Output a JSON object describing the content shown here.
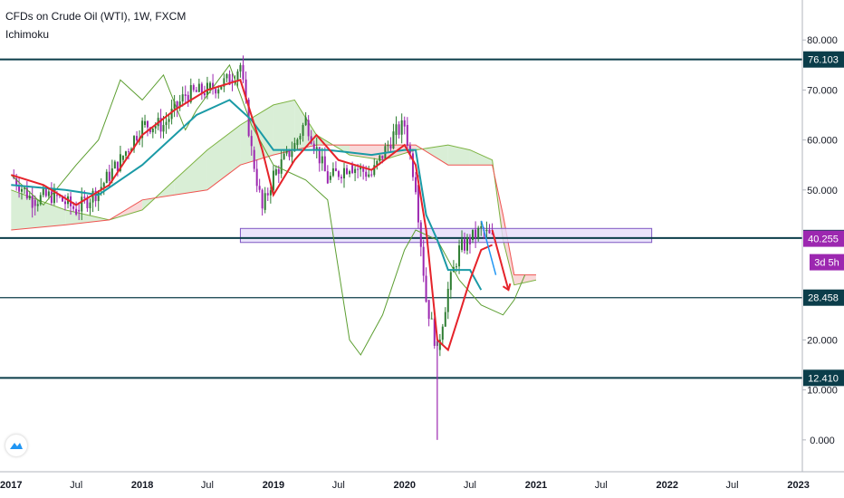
{
  "header": {
    "title": "CFDs on Crude Oil (WTI), 1W, FXCM",
    "indicator": "Ichimoku"
  },
  "colors": {
    "conversion_line": "#e5232a",
    "base_line": "#1a9aa6",
    "lagging_span": "#5c9e31",
    "cloud_bull": "#c9e7c4",
    "cloud_bear": "#f7c8c8",
    "candle_up": "#2e7d32",
    "candle_down": "#9c27b0",
    "horizontal_line": "#0b3d4a",
    "rectangle_fill": "#e5dcfa",
    "rectangle_border": "#7e57c2",
    "last_price_badge": "#9c27b0",
    "countdown_badge": "#9c27b0",
    "arrow": "#e5232a",
    "projection_arrow": "#2196f3"
  },
  "price_scale": {
    "ticks": [
      "80.000",
      "70.000",
      "60.000",
      "50.000",
      "20.000",
      "10.000",
      "0.000"
    ],
    "labels": [
      {
        "value": 76.103,
        "text": "76.103",
        "style": "line"
      },
      {
        "value": 40.389,
        "text": "40.389",
        "style": "line"
      },
      {
        "value": 40.255,
        "text": "40.255",
        "style": "price"
      },
      {
        "value": 28.458,
        "text": "28.458",
        "style": "line"
      },
      {
        "value": 12.41,
        "text": "12.410",
        "style": "line"
      }
    ],
    "countdown": "3d 5h"
  },
  "time_axis": {
    "labels": [
      "2017",
      "Jul",
      "2018",
      "Jul",
      "2019",
      "Jul",
      "2020",
      "Jul",
      "2021",
      "Jul",
      "2022",
      "Jul",
      "2023"
    ],
    "bold": [
      "2017",
      "2018",
      "2019",
      "2020",
      "2021",
      "2022",
      "2023"
    ]
  },
  "chart_data": {
    "type": "line",
    "title": "CFDs on Crude Oil (WTI), 1W, FXCM",
    "indicator": "Ichimoku",
    "y_range": [
      -8,
      88
    ],
    "x_range": [
      "2016-12",
      "2023-03"
    ],
    "horizontal_lines": [
      76.103,
      40.389,
      28.458,
      12.41
    ],
    "zone": {
      "from": "2018-10",
      "to": "2020-12",
      "low": 39.5,
      "high": 42.3
    },
    "price_series": {
      "name": "Price",
      "points": [
        [
          "2017-01",
          53
        ],
        [
          "2017-03",
          48
        ],
        [
          "2017-05",
          49
        ],
        [
          "2017-07",
          46
        ],
        [
          "2017-09",
          50
        ],
        [
          "2017-11",
          56
        ],
        [
          "2018-01",
          63
        ],
        [
          "2018-03",
          63
        ],
        [
          "2018-05",
          69
        ],
        [
          "2018-07",
          70
        ],
        [
          "2018-09",
          72
        ],
        [
          "2018-10",
          75
        ],
        [
          "2018-11",
          58
        ],
        [
          "2018-12",
          46
        ],
        [
          "2019-01",
          53
        ],
        [
          "2019-03",
          59
        ],
        [
          "2019-04",
          64
        ],
        [
          "2019-06",
          52
        ],
        [
          "2019-08",
          55
        ],
        [
          "2019-10",
          53
        ],
        [
          "2019-12",
          61
        ],
        [
          "2020-01",
          63
        ],
        [
          "2020-02",
          51
        ],
        [
          "2020-03",
          28
        ],
        [
          "2020-04",
          18
        ],
        [
          "2020-05",
          30
        ],
        [
          "2020-06",
          38
        ],
        [
          "2020-07",
          40
        ],
        [
          "2020-08",
          42
        ],
        [
          "2020-09",
          40.26
        ]
      ]
    },
    "conversion_line": {
      "name": "Conversion Line",
      "points": [
        [
          "2017-01",
          53
        ],
        [
          "2017-04",
          51
        ],
        [
          "2017-07",
          47
        ],
        [
          "2017-10",
          51
        ],
        [
          "2018-01",
          61
        ],
        [
          "2018-04",
          66
        ],
        [
          "2018-07",
          70
        ],
        [
          "2018-10",
          72
        ],
        [
          "2018-12",
          58
        ],
        [
          "2019-01",
          49
        ],
        [
          "2019-03",
          56
        ],
        [
          "2019-05",
          61
        ],
        [
          "2019-07",
          56
        ],
        [
          "2019-10",
          54
        ],
        [
          "2020-01",
          59
        ],
        [
          "2020-02",
          55
        ],
        [
          "2020-03",
          42
        ],
        [
          "2020-04",
          20
        ],
        [
          "2020-05",
          18
        ],
        [
          "2020-06",
          25
        ],
        [
          "2020-07",
          32
        ],
        [
          "2020-08",
          38
        ],
        [
          "2020-09",
          39
        ]
      ]
    },
    "base_line": {
      "name": "Base Line",
      "points": [
        [
          "2017-01",
          51
        ],
        [
          "2017-06",
          50
        ],
        [
          "2017-09",
          49
        ],
        [
          "2018-01",
          55
        ],
        [
          "2018-06",
          65
        ],
        [
          "2018-09",
          68
        ],
        [
          "2018-11",
          64
        ],
        [
          "2019-01",
          58
        ],
        [
          "2019-06",
          58
        ],
        [
          "2019-10",
          57
        ],
        [
          "2020-01",
          58
        ],
        [
          "2020-02",
          58
        ],
        [
          "2020-03",
          45
        ],
        [
          "2020-04",
          40
        ],
        [
          "2020-05",
          34
        ],
        [
          "2020-07",
          34
        ],
        [
          "2020-08",
          30
        ]
      ]
    },
    "lagging_span": {
      "name": "Lagging Span",
      "points": [
        [
          "2017-01",
          53
        ],
        [
          "2017-04",
          47
        ],
        [
          "2017-07",
          55
        ],
        [
          "2017-09",
          60
        ],
        [
          "2017-11",
          72
        ],
        [
          "2018-01",
          68
        ],
        [
          "2018-03",
          73
        ],
        [
          "2018-05",
          62
        ],
        [
          "2018-06",
          66
        ],
        [
          "2018-08",
          72
        ],
        [
          "2018-09",
          75
        ],
        [
          "2018-11",
          63
        ],
        [
          "2019-01",
          55
        ],
        [
          "2019-04",
          52
        ],
        [
          "2019-06",
          48
        ],
        [
          "2019-08",
          20
        ],
        [
          "2019-09",
          17
        ],
        [
          "2019-11",
          25
        ],
        [
          "2020-01",
          38
        ],
        [
          "2020-02",
          42
        ],
        [
          "2020-04",
          40
        ],
        [
          "2020-06",
          32
        ],
        [
          "2020-08",
          27
        ],
        [
          "2020-10",
          25
        ],
        [
          "2020-11",
          28
        ],
        [
          "2020-12",
          33
        ]
      ]
    },
    "cloud_span_a": {
      "name": "Lead 1",
      "points": [
        [
          "2017-01",
          50
        ],
        [
          "2017-06",
          46
        ],
        [
          "2017-10",
          44
        ],
        [
          "2018-01",
          46
        ],
        [
          "2018-04",
          52
        ],
        [
          "2018-07",
          58
        ],
        [
          "2018-10",
          63
        ],
        [
          "2019-01",
          67
        ],
        [
          "2019-03",
          68
        ],
        [
          "2019-05",
          61
        ],
        [
          "2019-08",
          57
        ],
        [
          "2019-11",
          56
        ],
        [
          "2020-02",
          58
        ],
        [
          "2020-05",
          59
        ],
        [
          "2020-07",
          58
        ],
        [
          "2020-09",
          56
        ],
        [
          "2020-10",
          40
        ],
        [
          "2020-11",
          31
        ],
        [
          "2021-01",
          32
        ]
      ]
    },
    "cloud_span_b": {
      "name": "Lead 2",
      "points": [
        [
          "2017-01",
          42
        ],
        [
          "2017-06",
          43
        ],
        [
          "2017-10",
          44
        ],
        [
          "2018-01",
          48
        ],
        [
          "2018-04",
          49
        ],
        [
          "2018-07",
          50
        ],
        [
          "2018-10",
          55
        ],
        [
          "2019-01",
          57
        ],
        [
          "2019-03",
          58
        ],
        [
          "2019-05",
          59
        ],
        [
          "2019-08",
          59
        ],
        [
          "2019-11",
          59
        ],
        [
          "2020-02",
          59
        ],
        [
          "2020-05",
          55
        ],
        [
          "2020-07",
          55
        ],
        [
          "2020-09",
          55
        ],
        [
          "2020-10",
          45
        ],
        [
          "2020-11",
          33
        ],
        [
          "2021-01",
          33
        ]
      ]
    },
    "annotation_arrow": {
      "from": [
        "2020-09",
        42
      ],
      "to": [
        "2020-10",
        30
      ]
    }
  }
}
